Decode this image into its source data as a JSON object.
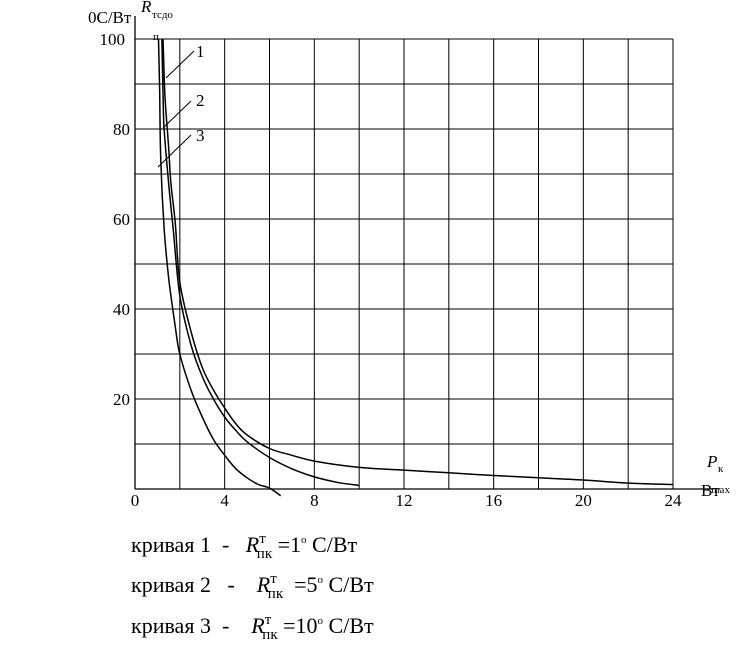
{
  "chart_data": {
    "type": "line",
    "y_unit": "0С/Вт",
    "y_symbol": "R",
    "y_symbol_sub": "тсдо",
    "y_symbol_sub2": "п",
    "x_symbol": "P",
    "x_symbol_sub": "к",
    "x_symbol_sub2": "max",
    "x_unit": "Вт",
    "xlim": [
      0,
      24
    ],
    "ylim": [
      0,
      100
    ],
    "x_ticks": [
      "0",
      "4",
      "8",
      "12",
      "16",
      "20",
      "24"
    ],
    "y_ticks": [
      "20",
      "40",
      "60",
      "80",
      "100"
    ],
    "grid": true,
    "series": [
      {
        "name": "1",
        "x": [
          1.25,
          1.3,
          1.35,
          1.5,
          1.6,
          1.8,
          2.0,
          2.5,
          3.0,
          3.5,
          4.0,
          4.5,
          5.0,
          6.0,
          7.0,
          8.0,
          10.0,
          12.0,
          14.0,
          16.0,
          18.0,
          20.0,
          22.0,
          24.0
        ],
        "y": [
          100,
          92,
          86,
          76,
          68,
          59,
          46,
          35,
          27,
          22,
          18,
          14.5,
          12,
          9,
          7.5,
          6.2,
          4.8,
          4.2,
          3.6,
          3.0,
          2.5,
          2.0,
          1.3,
          1.0
        ]
      },
      {
        "name": "2",
        "x": [
          1.2,
          1.25,
          1.3,
          1.5,
          1.7,
          2.0,
          2.5,
          3.0,
          3.5,
          4.0,
          4.5,
          5.0,
          6.0,
          7.0,
          8.0,
          9.0,
          10.0
        ],
        "y": [
          100,
          88,
          80,
          68,
          58,
          43,
          32,
          25,
          20,
          16,
          13,
          10.5,
          7,
          4.5,
          2.7,
          1.5,
          0.8
        ]
      },
      {
        "name": "3",
        "x": [
          1.05,
          1.1,
          1.15,
          1.3,
          1.5,
          1.8,
          2.0,
          2.5,
          3.0,
          3.5,
          4.0,
          4.5,
          5.0,
          5.5,
          6.0,
          6.5
        ],
        "y": [
          100,
          88,
          73,
          58,
          47,
          36,
          30,
          22,
          16,
          11,
          7.5,
          4.5,
          2.5,
          1.0,
          0.2,
          -1.5
        ]
      }
    ]
  },
  "legend": [
    {
      "prefix": "кривая 1",
      "dash": "-",
      "sym": "R",
      "sup": "т",
      "sub": "пк",
      "eq": "=1",
      "deg": "о",
      "unit": "С/Вт"
    },
    {
      "prefix": "кривая 2",
      "dash": "-",
      "sym": "R",
      "sup": "т",
      "sub": "пк",
      "eq": "=5",
      "deg": "о",
      "unit": "С/Вт"
    },
    {
      "prefix": "кривая 3",
      "dash": "-",
      "sym": "R",
      "sup": "т",
      "sub": "пк",
      "eq": "=10",
      "deg": "о",
      "unit": "С/Вт"
    }
  ]
}
